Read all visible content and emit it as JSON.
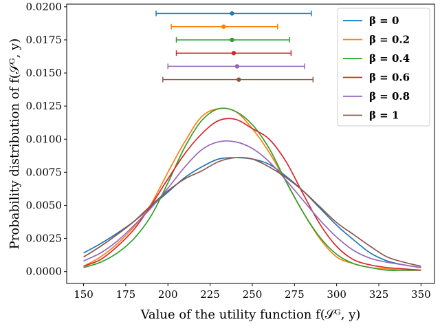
{
  "chart_data": {
    "type": "line",
    "title": "",
    "xlabel": "Value of the utility function  f(𝒮ᴳ, y)",
    "ylabel": "Probability distribution of  f(𝒮ᴳ, y)",
    "xlim": [
      140,
      358
    ],
    "ylim": [
      -0.0009,
      0.0202
    ],
    "xticks": [
      150,
      175,
      200,
      225,
      250,
      275,
      300,
      325,
      350
    ],
    "yticks": [
      0.0,
      0.0025,
      0.005,
      0.0075,
      0.01,
      0.0125,
      0.015,
      0.0175,
      0.02
    ],
    "xtick_labels": [
      "150",
      "175",
      "200",
      "225",
      "250",
      "275",
      "300",
      "325",
      "350"
    ],
    "ytick_labels": [
      "0.0000",
      "0.0025",
      "0.0050",
      "0.0075",
      "0.0100",
      "0.0125",
      "0.0150",
      "0.0175",
      "0.0200"
    ],
    "grid": false,
    "legend_position": "top-right",
    "x": [
      150,
      160,
      170,
      180,
      190,
      200,
      210,
      220,
      230,
      240,
      250,
      260,
      270,
      280,
      290,
      300,
      310,
      320,
      330,
      340,
      350
    ],
    "series": [
      {
        "name": "β = 0",
        "color": "#1f77b4",
        "values": [
          0.0014,
          0.0021,
          0.0029,
          0.0038,
          0.0049,
          0.006,
          0.0071,
          0.0079,
          0.0085,
          0.0086,
          0.0085,
          0.0081,
          0.0072,
          0.0061,
          0.0048,
          0.0035,
          0.0024,
          0.0014,
          0.0008,
          0.0005,
          0.0003
        ],
        "errorbar": {
          "center": 238,
          "low": 193,
          "high": 285,
          "y": 0.0195
        }
      },
      {
        "name": "β = 0.2",
        "color": "#ff7f0e",
        "values": [
          0.0004,
          0.0011,
          0.0021,
          0.0034,
          0.0051,
          0.0075,
          0.0098,
          0.0117,
          0.0123,
          0.0121,
          0.0108,
          0.009,
          0.0068,
          0.0045,
          0.0025,
          0.0011,
          0.0006,
          0.0003,
          0.0002,
          0.0001,
          0.0001
        ],
        "errorbar": {
          "center": 233,
          "low": 202,
          "high": 265,
          "y": 0.0185
        }
      },
      {
        "name": "β = 0.4",
        "color": "#2ca02c",
        "values": [
          0.0003,
          0.0007,
          0.0014,
          0.0025,
          0.0042,
          0.0067,
          0.0094,
          0.0114,
          0.0123,
          0.0121,
          0.0111,
          0.0093,
          0.0068,
          0.0045,
          0.0026,
          0.0013,
          0.0006,
          0.0003,
          0.0001,
          0.0001,
          0.0001
        ],
        "errorbar": {
          "center": 238,
          "low": 205,
          "high": 272,
          "y": 0.0175
        }
      },
      {
        "name": "β = 0.6",
        "color": "#d62728",
        "values": [
          0.0004,
          0.0009,
          0.0019,
          0.0032,
          0.005,
          0.007,
          0.0089,
          0.0104,
          0.0114,
          0.0115,
          0.0108,
          0.01,
          0.0083,
          0.0059,
          0.0036,
          0.0019,
          0.0009,
          0.0005,
          0.0003,
          0.0002,
          0.0001
        ],
        "errorbar": {
          "center": 239,
          "low": 205,
          "high": 273,
          "y": 0.0165
        }
      },
      {
        "name": "β = 0.8",
        "color": "#9467bd",
        "values": [
          0.0008,
          0.0014,
          0.0023,
          0.0035,
          0.0048,
          0.0063,
          0.0079,
          0.0092,
          0.0098,
          0.0098,
          0.0093,
          0.0083,
          0.0069,
          0.0054,
          0.0039,
          0.0026,
          0.0016,
          0.001,
          0.0007,
          0.0005,
          0.0003
        ],
        "errorbar": {
          "center": 241,
          "low": 200,
          "high": 281,
          "y": 0.0155
        }
      },
      {
        "name": "β = 1",
        "color": "#8c564b",
        "values": [
          0.0011,
          0.0019,
          0.0028,
          0.0038,
          0.005,
          0.0061,
          0.007,
          0.0076,
          0.0083,
          0.0086,
          0.0085,
          0.0079,
          0.0071,
          0.0061,
          0.0049,
          0.0037,
          0.0028,
          0.0019,
          0.0011,
          0.0007,
          0.0004
        ],
        "errorbar": {
          "center": 242,
          "low": 197,
          "high": 286,
          "y": 0.0145
        }
      }
    ]
  }
}
